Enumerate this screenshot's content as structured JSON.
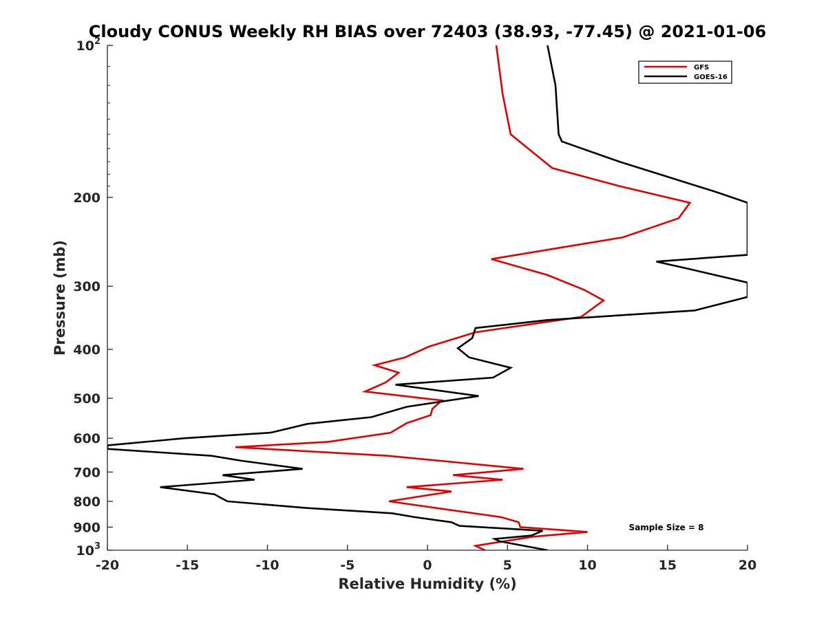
{
  "chart_data": {
    "type": "line",
    "title": "Cloudy CONUS Weekly RH BIAS over 72403 (38.93, -77.45) @ 2021-01-06",
    "xlabel": "Relative Humidity (%)",
    "ylabel": "Pressure (mb)",
    "xlim": [
      -20,
      20
    ],
    "ylim": [
      100,
      1000
    ],
    "yscale": "log",
    "y_reversed": true,
    "x_ticks": [
      "-20",
      "-15",
      "-10",
      "-5",
      "0",
      "5",
      "10",
      "15",
      "20"
    ],
    "y_ticks": [
      {
        "value": 100,
        "base": "10",
        "exp": "2"
      },
      {
        "value": 200,
        "label": "200"
      },
      {
        "value": 300,
        "label": "300"
      },
      {
        "value": 400,
        "label": "400"
      },
      {
        "value": 500,
        "label": "500"
      },
      {
        "value": 600,
        "label": "600"
      },
      {
        "value": 700,
        "label": "700"
      },
      {
        "value": 800,
        "label": "800"
      },
      {
        "value": 900,
        "label": "900"
      },
      {
        "value": 1000,
        "base": "10",
        "exp": "3"
      }
    ],
    "grid": false,
    "legend_position": "top-right",
    "annotation": "Sample Size = 8",
    "series": [
      {
        "name": "GFS",
        "color": "#e00000",
        "points": [
          [
            4.3,
            100
          ],
          [
            4.7,
            125
          ],
          [
            5.2,
            150
          ],
          [
            7.8,
            175
          ],
          [
            12.0,
            190
          ],
          [
            16.4,
            205
          ],
          [
            15.7,
            220
          ],
          [
            12.2,
            240
          ],
          [
            4.0,
            265
          ],
          [
            7.5,
            285
          ],
          [
            9.8,
            305
          ],
          [
            11.0,
            320
          ],
          [
            9.6,
            345
          ],
          [
            3.0,
            370
          ],
          [
            0.1,
            395
          ],
          [
            -1.4,
            415
          ],
          [
            -3.3,
            430
          ],
          [
            -1.8,
            445
          ],
          [
            -2.6,
            465
          ],
          [
            -3.9,
            485
          ],
          [
            0.9,
            505
          ],
          [
            0.3,
            525
          ],
          [
            0.2,
            540
          ],
          [
            -1.3,
            560
          ],
          [
            -2.3,
            585
          ],
          [
            -6.2,
            610
          ],
          [
            -12.0,
            625
          ],
          [
            -2.5,
            650
          ],
          [
            0.8,
            665
          ],
          [
            6.0,
            690
          ],
          [
            1.6,
            710
          ],
          [
            4.7,
            725
          ],
          [
            -1.3,
            750
          ],
          [
            1.5,
            765
          ],
          [
            -2.4,
            800
          ],
          [
            4.6,
            860
          ],
          [
            5.7,
            880
          ],
          [
            5.8,
            900
          ],
          [
            10.0,
            920
          ],
          [
            6.6,
            940
          ],
          [
            3.0,
            980
          ],
          [
            3.6,
            1000
          ]
        ]
      },
      {
        "name": "GOES-16",
        "color": "#000000",
        "points": [
          [
            7.5,
            100
          ],
          [
            8.0,
            120
          ],
          [
            8.2,
            150
          ],
          [
            8.4,
            155
          ],
          [
            12.0,
            170
          ],
          [
            18.0,
            195
          ],
          [
            20.0,
            205
          ],
          [
            20.0,
            260
          ],
          [
            14.3,
            268
          ],
          [
            16.5,
            278
          ],
          [
            20.0,
            295
          ],
          [
            20.0,
            315
          ],
          [
            16.7,
            335
          ],
          [
            7.5,
            350
          ],
          [
            3.0,
            363
          ],
          [
            2.8,
            380
          ],
          [
            1.9,
            398
          ],
          [
            2.6,
            415
          ],
          [
            5.2,
            435
          ],
          [
            4.1,
            455
          ],
          [
            -2.0,
            470
          ],
          [
            3.2,
            495
          ],
          [
            -1.3,
            520
          ],
          [
            -3.5,
            545
          ],
          [
            -7.5,
            562
          ],
          [
            -9.8,
            585
          ],
          [
            -15.2,
            600
          ],
          [
            -20.0,
            620
          ],
          [
            -20.0,
            630
          ],
          [
            -13.5,
            650
          ],
          [
            -11.6,
            665
          ],
          [
            -7.8,
            690
          ],
          [
            -12.8,
            710
          ],
          [
            -10.8,
            725
          ],
          [
            -16.7,
            750
          ],
          [
            -13.3,
            775
          ],
          [
            -13.0,
            785
          ],
          [
            -12.5,
            800
          ],
          [
            -7.5,
            825
          ],
          [
            -2.2,
            845
          ],
          [
            -0.8,
            860
          ],
          [
            1.5,
            880
          ],
          [
            2.0,
            895
          ],
          [
            7.2,
            915
          ],
          [
            6.5,
            935
          ],
          [
            4.2,
            950
          ],
          [
            4.5,
            960
          ],
          [
            7.5,
            1000
          ]
        ]
      }
    ]
  }
}
